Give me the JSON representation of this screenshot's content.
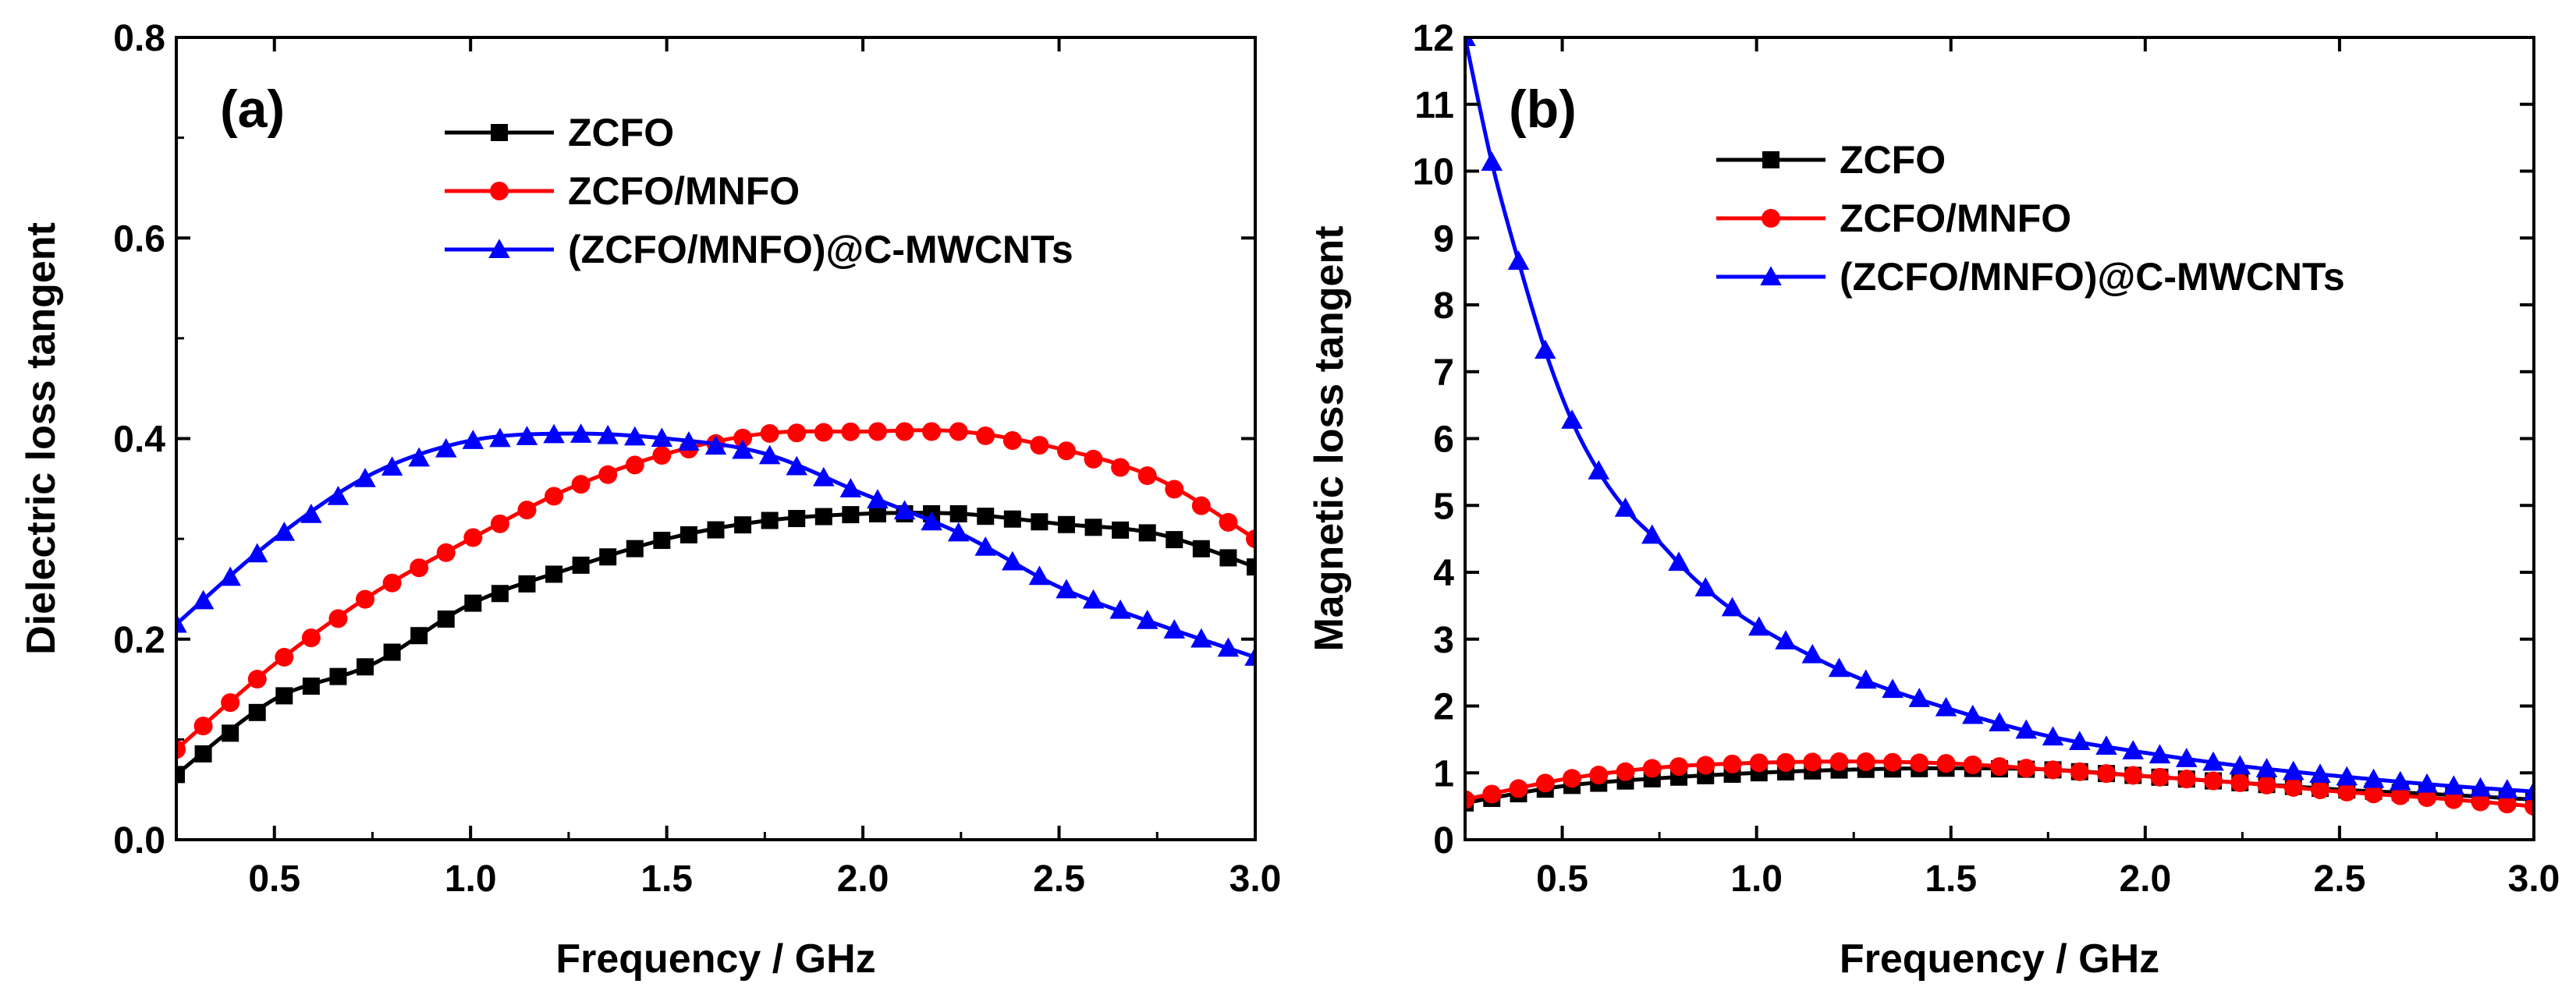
{
  "chart_data": [
    {
      "type": "line",
      "panel_label": "(a)",
      "xlabel": "Frequency / GHz",
      "ylabel": "Dielectric loss tangent",
      "xlim": [
        0.25,
        3.0
      ],
      "ylim": [
        0.0,
        0.8
      ],
      "xticks": [
        0.5,
        1.0,
        1.5,
        2.0,
        2.5,
        3.0
      ],
      "xtick_labels": [
        "0.5",
        "1.0",
        "1.5",
        "2.0",
        "2.5",
        "3.0"
      ],
      "yticks": [
        0.0,
        0.2,
        0.4,
        0.6,
        0.8
      ],
      "ytick_labels": [
        "0.0",
        "0.2",
        "0.4",
        "0.6",
        "0.8"
      ],
      "legend_position": "top-right",
      "series": [
        {
          "name": "ZCFO",
          "color": "#000000",
          "marker": "square",
          "x": [
            0.25,
            0.5,
            0.75,
            1.0,
            1.25,
            1.5,
            1.75,
            2.0,
            2.25,
            2.5,
            2.75,
            3.0
          ],
          "y": [
            0.065,
            0.14,
            0.175,
            0.235,
            0.27,
            0.3,
            0.318,
            0.325,
            0.325,
            0.315,
            0.305,
            0.272
          ]
        },
        {
          "name": "ZCFO/MNFO",
          "color": "#ff0000",
          "marker": "circle",
          "x": [
            0.25,
            0.5,
            0.75,
            1.0,
            1.25,
            1.5,
            1.75,
            2.0,
            2.25,
            2.5,
            2.75,
            3.0
          ],
          "y": [
            0.09,
            0.175,
            0.245,
            0.3,
            0.35,
            0.385,
            0.405,
            0.407,
            0.407,
            0.39,
            0.36,
            0.3
          ]
        },
        {
          "name": "(ZCFO/MNFO)@C-MWCNTs",
          "color": "#0000ff",
          "marker": "triangle",
          "x": [
            0.25,
            0.5,
            0.75,
            1.0,
            1.25,
            1.5,
            1.75,
            2.0,
            2.25,
            2.5,
            2.75,
            3.0
          ],
          "y": [
            0.215,
            0.3,
            0.365,
            0.398,
            0.405,
            0.4,
            0.385,
            0.345,
            0.305,
            0.252,
            0.215,
            0.182
          ]
        }
      ]
    },
    {
      "type": "line",
      "panel_label": "(b)",
      "xlabel": "Frequency / GHz",
      "ylabel": "Magnetic loss tangent",
      "xlim": [
        0.25,
        3.0
      ],
      "ylim": [
        0,
        12
      ],
      "xticks": [
        0.5,
        1.0,
        1.5,
        2.0,
        2.5,
        3.0
      ],
      "xtick_labels": [
        "0.5",
        "1.0",
        "1.5",
        "2.0",
        "2.5",
        "3.0"
      ],
      "yticks": [
        0,
        1,
        2,
        3,
        4,
        5,
        6,
        7,
        8,
        9,
        10,
        11,
        12
      ],
      "ytick_labels": [
        "0",
        "1",
        "2",
        "3",
        "4",
        "5",
        "6",
        "7",
        "8",
        "9",
        "10",
        "11",
        "12"
      ],
      "legend_position": "top-right",
      "series": [
        {
          "name": "ZCFO",
          "color": "#000000",
          "marker": "square",
          "x": [
            0.25,
            0.5,
            0.75,
            1.0,
            1.25,
            1.5,
            1.75,
            2.0,
            2.25,
            2.5,
            2.75,
            3.0
          ],
          "y": [
            0.55,
            0.8,
            0.92,
            1.0,
            1.05,
            1.07,
            1.05,
            0.95,
            0.85,
            0.75,
            0.68,
            0.6
          ]
        },
        {
          "name": "ZCFO/MNFO",
          "color": "#ff0000",
          "marker": "circle",
          "x": [
            0.25,
            0.5,
            0.75,
            1.0,
            1.25,
            1.5,
            1.75,
            2.0,
            2.25,
            2.5,
            2.75,
            3.0
          ],
          "y": [
            0.6,
            0.9,
            1.08,
            1.15,
            1.17,
            1.14,
            1.05,
            0.95,
            0.85,
            0.72,
            0.62,
            0.5
          ]
        },
        {
          "name": "(ZCFO/MNFO)@C-MWCNTs",
          "color": "#0000ff",
          "marker": "triangle",
          "x": [
            0.25,
            0.32,
            0.39,
            0.46,
            0.53,
            0.6,
            0.67,
            0.75,
            0.85,
            1.0,
            1.25,
            1.5,
            1.75,
            2.0,
            2.25,
            2.5,
            2.75,
            3.0
          ],
          "y": [
            12.0,
            10.1,
            8.6,
            7.25,
            6.2,
            5.45,
            4.9,
            4.45,
            3.85,
            3.2,
            2.45,
            1.95,
            1.55,
            1.3,
            1.1,
            0.95,
            0.82,
            0.72
          ]
        }
      ]
    }
  ]
}
